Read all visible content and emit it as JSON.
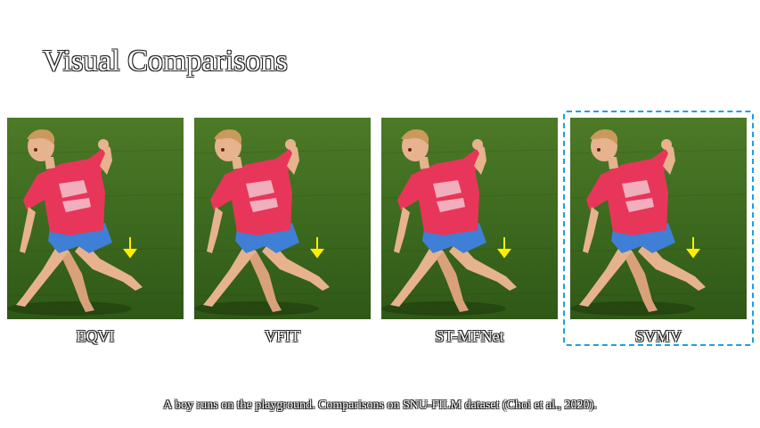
{
  "title": "Visual Comparisons",
  "methods": [
    {
      "label": "EQVI"
    },
    {
      "label": "VFIT"
    },
    {
      "label": "ST-MFNet"
    },
    {
      "label": "SVMV"
    }
  ],
  "highlighted_method": "SVMV",
  "caption": "A boy runs on the playground. Comparisons on SNU-FILM dataset (Choi et al., 2020).",
  "colors": {
    "grass": "#3d6a1f",
    "shirt": "#e8365a",
    "shorts": "#3f7fd6",
    "skin": "#e6b38e",
    "hair": "#c99a5b",
    "arrow": "#ffee00",
    "highlight": "#1aa0e6"
  }
}
